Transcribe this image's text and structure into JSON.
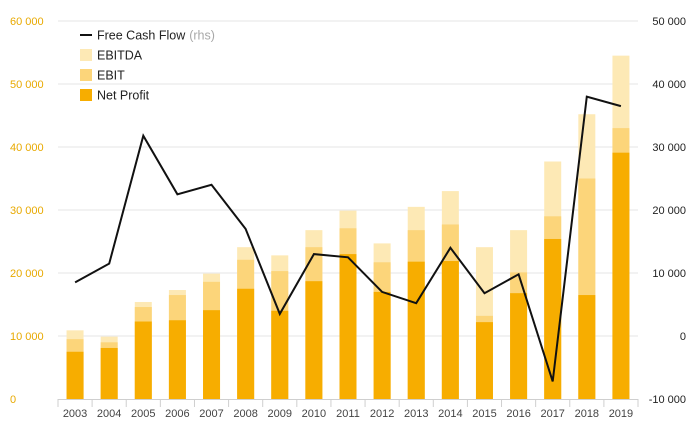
{
  "chart_data": {
    "type": "bar",
    "subtype": "overlaid bars with line on secondary axis",
    "categories": [
      "2003",
      "2004",
      "2005",
      "2006",
      "2007",
      "2008",
      "2009",
      "2010",
      "2011",
      "2012",
      "2013",
      "2014",
      "2015",
      "2016",
      "2017",
      "2018",
      "2019"
    ],
    "series": [
      {
        "name": "EBITDA",
        "type": "bar",
        "axis": "left",
        "color": "#fde9b5",
        "values": [
          10900,
          9900,
          15400,
          17300,
          19900,
          24100,
          22800,
          26800,
          29900,
          24700,
          30500,
          33000,
          24100,
          26800,
          37700,
          45200,
          54500
        ]
      },
      {
        "name": "EBIT",
        "type": "bar",
        "axis": "left",
        "color": "#fcd57a",
        "values": [
          9500,
          9000,
          14600,
          16500,
          18600,
          22100,
          20300,
          24100,
          27100,
          21700,
          26800,
          27700,
          13200,
          20100,
          29000,
          35000,
          43000
        ]
      },
      {
        "name": "Net Profit",
        "type": "bar",
        "axis": "left",
        "color": "#f7ad00",
        "values": [
          7500,
          8100,
          12300,
          12500,
          14100,
          17500,
          14000,
          18700,
          23000,
          17000,
          21800,
          21900,
          12200,
          16800,
          25400,
          16500,
          39100
        ]
      },
      {
        "name": "Free Cash Flow",
        "suffix": "(rhs)",
        "type": "line",
        "axis": "right",
        "color": "#111111",
        "values": [
          8500,
          11500,
          31800,
          22500,
          24000,
          17000,
          3500,
          13000,
          12500,
          7000,
          5200,
          14000,
          6800,
          9800,
          -7200,
          38000,
          36500
        ]
      }
    ],
    "y_left": {
      "ticks": [
        "0",
        "10 000",
        "20 000",
        "30 000",
        "40 000",
        "50 000",
        "60 000"
      ],
      "min": 0,
      "max": 60000,
      "tick_color": "#e8a900"
    },
    "y_right": {
      "ticks": [
        "-10 000",
        "0",
        "10 000",
        "20 000",
        "30 000",
        "40 000",
        "50 000"
      ],
      "min": -10000,
      "max": 50000,
      "tick_color": "#222222"
    },
    "grid": true,
    "legend_position": "top-left"
  }
}
